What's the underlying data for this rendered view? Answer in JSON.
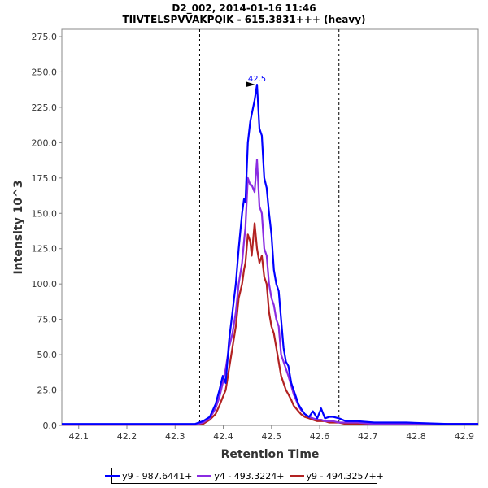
{
  "chart_data": {
    "type": "line",
    "title": "D2_002, 2014-01-16 11:46",
    "subtitle": "TIIVTELSPVVAKPQIK - 615.3831+++ (heavy)",
    "xlabel": "Retention Time",
    "ylabel": "Intensity 10^3",
    "xlim": [
      42.065,
      42.929
    ],
    "ylim": [
      0,
      275
    ],
    "xticks": [
      "42.1",
      "42.2",
      "42.3",
      "42.4",
      "42.5",
      "42.6",
      "42.7",
      "42.8",
      "42.9"
    ],
    "yticks": [
      "0.0",
      "25.0",
      "50.0",
      "75.0",
      "100.0",
      "125.0",
      "150.0",
      "175.0",
      "200.0",
      "225.0",
      "250.0",
      "275.0"
    ],
    "boundaries": [
      42.351,
      42.64
    ],
    "peak_annotation": {
      "x": 42.47,
      "y": 241,
      "label": "42.5"
    },
    "x": [
      42.065,
      42.2,
      42.3,
      42.341,
      42.358,
      42.372,
      42.384,
      42.392,
      42.399,
      42.405,
      42.412,
      42.419,
      42.426,
      42.432,
      42.439,
      42.443,
      42.446,
      42.451,
      42.456,
      42.459,
      42.465,
      42.47,
      42.475,
      42.48,
      42.485,
      42.49,
      42.495,
      42.5,
      42.505,
      42.51,
      42.515,
      42.52,
      42.525,
      42.53,
      42.535,
      42.541,
      42.546,
      42.551,
      42.556,
      42.561,
      42.569,
      42.578,
      42.586,
      42.595,
      42.603,
      42.611,
      42.62,
      42.628,
      42.64,
      42.654,
      42.679,
      42.713,
      42.78,
      42.865,
      42.929
    ],
    "series": [
      {
        "name": "y9 - 987.6441+",
        "color": "#0000ff",
        "values": [
          1,
          1,
          1,
          1,
          3,
          6,
          15,
          25,
          35,
          30,
          60,
          80,
          100,
          125,
          150,
          160,
          158,
          200,
          215,
          220,
          230,
          241,
          210,
          205,
          175,
          168,
          150,
          135,
          110,
          100,
          95,
          75,
          55,
          45,
          42,
          30,
          25,
          20,
          15,
          12,
          8,
          6,
          10,
          5,
          12,
          5,
          6,
          6,
          5,
          3,
          3,
          2,
          2,
          1,
          1
        ]
      },
      {
        "name": "y4 - 493.3224+",
        "color": "#8a2be2",
        "values": [
          0.5,
          0.5,
          0.5,
          0.5,
          2,
          5,
          12,
          20,
          30,
          40,
          55,
          65,
          80,
          100,
          115,
          130,
          140,
          175,
          170,
          170,
          165,
          188,
          155,
          150,
          125,
          120,
          100,
          90,
          85,
          75,
          70,
          50,
          45,
          40,
          35,
          28,
          22,
          18,
          14,
          11,
          8,
          6,
          5,
          4,
          4,
          3,
          3,
          3,
          2,
          2,
          2,
          1,
          1,
          1,
          1
        ]
      },
      {
        "name": "y9 - 494.3257++",
        "color": "#b22222",
        "values": [
          0.5,
          0.5,
          0.5,
          0.5,
          1,
          4,
          8,
          14,
          20,
          25,
          40,
          55,
          70,
          90,
          100,
          110,
          115,
          135,
          130,
          120,
          143,
          125,
          115,
          120,
          105,
          100,
          80,
          70,
          65,
          55,
          45,
          35,
          30,
          25,
          22,
          18,
          14,
          12,
          10,
          8,
          6,
          5,
          4,
          3,
          3,
          3,
          2,
          2,
          2,
          1,
          1,
          1,
          1,
          1,
          1
        ]
      }
    ]
  }
}
